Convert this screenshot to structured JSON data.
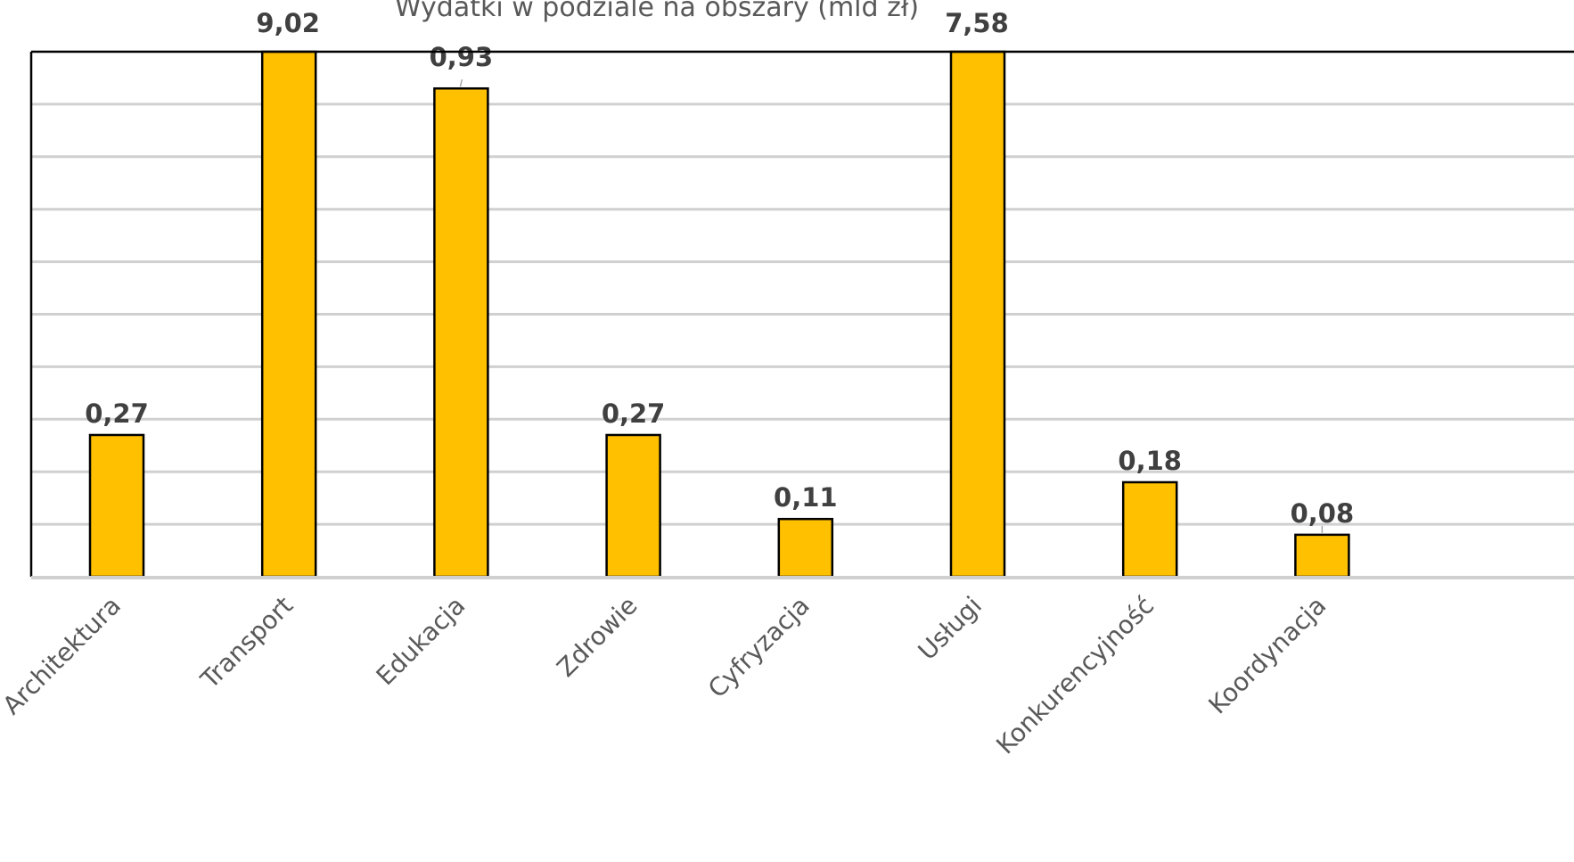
{
  "chart_data": {
    "type": "bar",
    "title": "Wydatki w podziale na obszary (mld zł)",
    "categories": [
      "Architektura",
      "Transport",
      "Edukacja",
      "Zdrowie",
      "Cyfryzacja",
      "Usługi",
      "Konkurencyjność",
      "Koordynacja"
    ],
    "values": [
      0.27,
      9.02,
      0.93,
      0.27,
      0.11,
      7.58,
      0.18,
      0.08
    ],
    "value_labels": [
      "0,27",
      "9,02",
      "0,93",
      "0,27",
      "0,11",
      "7,58",
      "0,18",
      "0,08"
    ],
    "xlabel": "",
    "ylabel": "",
    "ylim": [
      0,
      1.0
    ],
    "grid": true,
    "legend": "none",
    "bar_color": "#FFC000",
    "bar_border_color": "#000000",
    "gridline_color": "#D0D0D0"
  }
}
